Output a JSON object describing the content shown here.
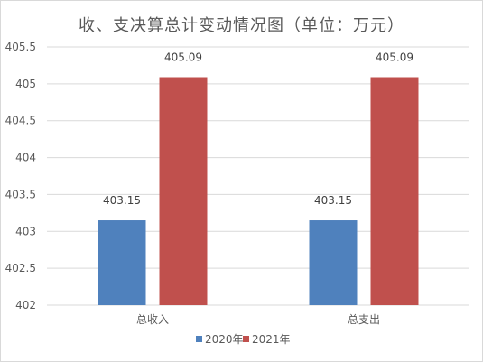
{
  "chart_data": {
    "type": "bar",
    "title": "收、支决算总计变动情况图（单位：万元）",
    "categories": [
      "总收入",
      "总支出"
    ],
    "series": [
      {
        "name": "2020年",
        "values": [
          403.15,
          403.15
        ],
        "labels": [
          "403.15",
          "403.15"
        ],
        "color": "#4f81bd"
      },
      {
        "name": "2021年",
        "values": [
          405.09,
          405.09
        ],
        "labels": [
          "405.09",
          "405.09"
        ],
        "color": "#c0504d"
      }
    ],
    "ylim": [
      402,
      405.5
    ],
    "yticks": [
      "402",
      "402.5",
      "403",
      "403.5",
      "404",
      "404.5",
      "405",
      "405.5"
    ],
    "xlabel": "",
    "ylabel": "",
    "grid": true,
    "legend_position": "bottom"
  }
}
